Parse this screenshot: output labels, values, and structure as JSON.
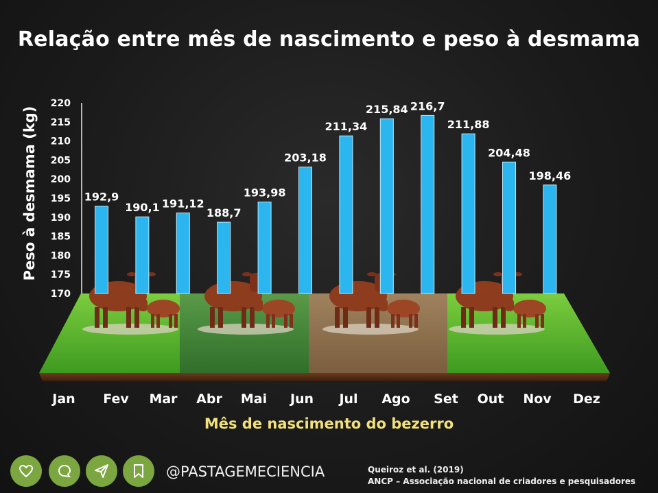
{
  "title": "Relação entre mês de nascimento e peso à desmama",
  "chart_data": {
    "type": "bar",
    "categories": [
      "Jan",
      "Fev",
      "Mar",
      "Abr",
      "Mai",
      "Jun",
      "Jul",
      "Ago",
      "Set",
      "Out",
      "Nov",
      "Dez"
    ],
    "values": [
      192.9,
      190.1,
      191.12,
      188.7,
      193.98,
      203.18,
      211.34,
      215.84,
      216.7,
      211.88,
      204.48,
      198.46
    ],
    "value_labels": [
      "192,9",
      "190,1",
      "191,12",
      "188,7",
      "193,98",
      "203,18",
      "211,34",
      "215,84",
      "216,7",
      "211,88",
      "204,48",
      "198,46"
    ],
    "ylabel": "Peso à desmama (kg)",
    "xlabel": "Mês de nascimento do bezerro",
    "ylim": [
      170,
      220
    ],
    "yticks": [
      170,
      175,
      180,
      185,
      190,
      195,
      200,
      205,
      210,
      215,
      220
    ],
    "bar_color": "#2bb6ef",
    "grid": false
  },
  "footer": {
    "handle": "@PASTAGEMECIENCIA",
    "source_line1": "Queiroz et al. (2019)",
    "source_line2": "ANCP – Associação nacional de criadores e pesquisadores",
    "icons": [
      "heart-icon",
      "comment-icon",
      "share-icon",
      "bookmark-icon"
    ],
    "icon_color": "#7ba640"
  }
}
